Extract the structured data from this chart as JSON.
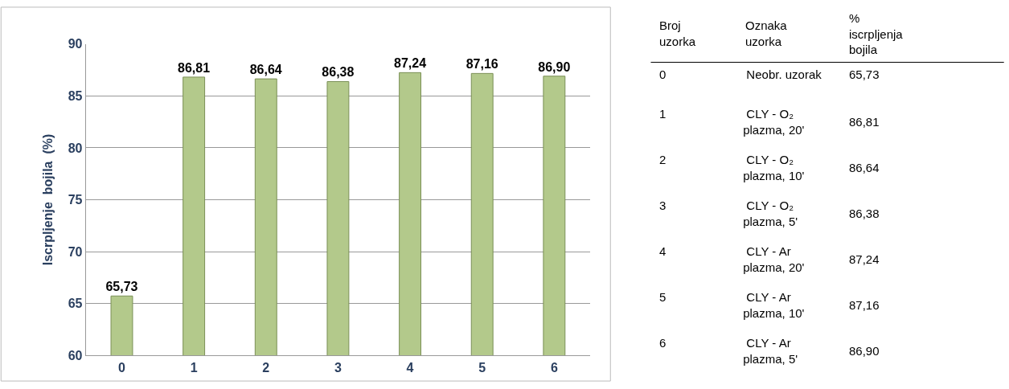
{
  "chart_data": [
    {
      "type": "bar",
      "ylabel": "Iscrpljenje  bojila  (%)",
      "categories": [
        "0",
        "1",
        "2",
        "3",
        "4",
        "5",
        "6"
      ],
      "values": [
        65.73,
        86.81,
        86.64,
        86.38,
        87.24,
        87.16,
        86.9
      ],
      "value_labels": [
        "65,73",
        "86,81",
        "86,64",
        "86,38",
        "87,24",
        "87,16",
        "86,90"
      ],
      "color": "#b3c98b",
      "ylim": [
        60,
        90
      ],
      "yticks": [
        60,
        65,
        70,
        75,
        80,
        85,
        90
      ],
      "grid": "y"
    },
    {
      "type": "other",
      "annotations": [
        "Broj\nuzorka",
        "Oznaka\nuzorka",
        "%\niscrpljenja\nbojila",
        "0",
        "Neobr. uzorak",
        "65,73",
        "1",
        "CLY - O₂\nplazma, 20'",
        "86,81",
        "2",
        "CLY - O₂\nplazma, 10'",
        "86,64",
        "3",
        "CLY - O₂\nplazma, 5'",
        "86,38",
        "4",
        "CLY - Ar\nplazma, 20'",
        "87,24",
        "5",
        "CLY - Ar\nplazma, 10'",
        "87,16",
        "6",
        "CLY - Ar\nplazma, 5'",
        "86,90"
      ]
    }
  ]
}
